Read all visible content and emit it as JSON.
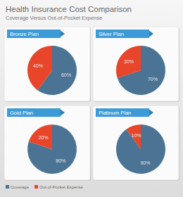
{
  "header": {
    "title": "Health Insurance Cost Comparison",
    "subtitle": "Coverage Versus Out-of-Pocket Expense"
  },
  "chart_data": [
    {
      "type": "pie",
      "title": "Bronze Plan",
      "categories": [
        "Coverage",
        "Out-of-Pocket Expense"
      ],
      "values": [
        60,
        40
      ],
      "value_labels": [
        "60%",
        "40%"
      ],
      "colors": [
        "#4a7394",
        "#e8452a"
      ],
      "data_labels": true,
      "legend": "bottom"
    },
    {
      "type": "pie",
      "title": "Silver Plan",
      "categories": [
        "Coverage",
        "Out-of-Pocket Expense"
      ],
      "values": [
        70,
        30
      ],
      "value_labels": [
        "70%",
        "30%"
      ],
      "colors": [
        "#4a7394",
        "#e8452a"
      ],
      "data_labels": true,
      "legend": "bottom"
    },
    {
      "type": "pie",
      "title": "Gold Plan",
      "categories": [
        "Coverage",
        "Out-of-Pocket Expense"
      ],
      "values": [
        80,
        20
      ],
      "value_labels": [
        "80%",
        "20%"
      ],
      "colors": [
        "#4a7394",
        "#e8452a"
      ],
      "data_labels": true,
      "legend": "bottom"
    },
    {
      "type": "pie",
      "title": "Platinum Plan",
      "categories": [
        "Coverage",
        "Out-of-Pocket Expense"
      ],
      "values": [
        90,
        10
      ],
      "value_labels": [
        "90%",
        "10%"
      ],
      "colors": [
        "#4a7394",
        "#e8452a"
      ],
      "data_labels": true,
      "legend": "bottom"
    }
  ]
}
